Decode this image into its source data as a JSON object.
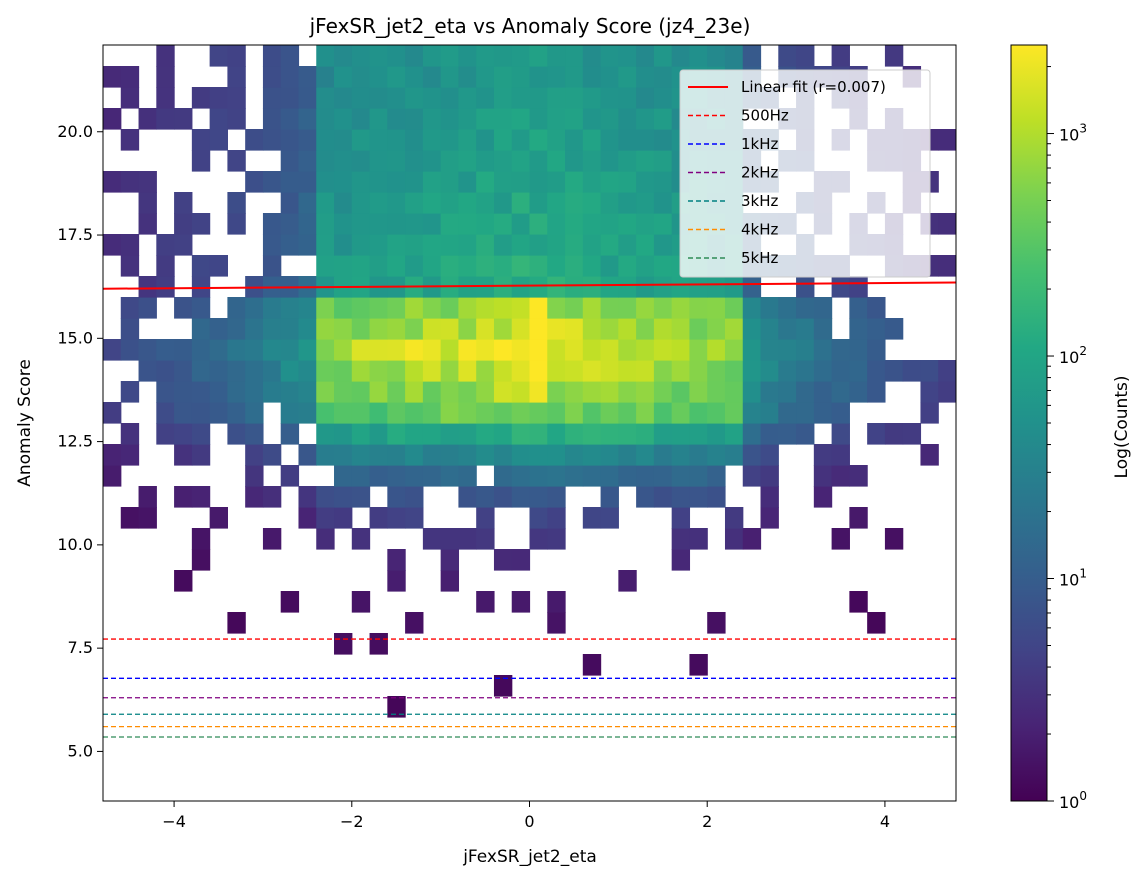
{
  "chart_data": {
    "type": "heatmap",
    "title": "jFexSR_jet2_eta vs Anomaly Score (jz4_23e)",
    "xlabel": "jFexSR_jet2_eta",
    "ylabel": "Anomaly Score",
    "xlim": [
      -4.8,
      4.8
    ],
    "ylim": [
      3.8,
      22.1
    ],
    "x_ticks": [
      -4,
      -2,
      0,
      2,
      4
    ],
    "x_tick_labels": [
      "−4",
      "−2",
      "0",
      "2",
      "4"
    ],
    "y_ticks": [
      5.0,
      7.5,
      10.0,
      12.5,
      15.0,
      17.5,
      20.0
    ],
    "y_tick_labels": [
      "5.0",
      "7.5",
      "10.0",
      "12.5",
      "15.0",
      "17.5",
      "20.0"
    ],
    "colorbar": {
      "label": "Log(Counts)",
      "scale": "log",
      "colormap": "viridis",
      "range": [
        1,
        2500
      ],
      "major_ticks": [
        1,
        10,
        100,
        1000
      ],
      "major_tick_labels": [
        {
          "base": "10",
          "exp": "0"
        },
        {
          "base": "10",
          "exp": "1"
        },
        {
          "base": "10",
          "exp": "2"
        },
        {
          "base": "10",
          "exp": "3"
        }
      ]
    },
    "hist_bins": {
      "x_edges_range": [
        -4.8,
        4.8
      ],
      "x_bins": 48,
      "y_edges_range": [
        3.8,
        22.1
      ],
      "y_bins": 36
    },
    "series": [
      {
        "name": "Linear fit (r=0.007)",
        "kind": "line",
        "style": "solid",
        "color": "#ff0000",
        "x": [
          -4.8,
          4.8
        ],
        "y": [
          16.2,
          16.35
        ]
      },
      {
        "name": "500Hz",
        "kind": "hline",
        "style": "dashed",
        "color": "#ff0000",
        "y": 7.72
      },
      {
        "name": "1kHz",
        "kind": "hline",
        "style": "dashed",
        "color": "#0000ff",
        "y": 6.77
      },
      {
        "name": "2kHz",
        "kind": "hline",
        "style": "dashed",
        "color": "#800080",
        "y": 6.3
      },
      {
        "name": "3kHz",
        "kind": "hline",
        "style": "dashed",
        "color": "#008080",
        "y": 5.9
      },
      {
        "name": "4kHz",
        "kind": "hline",
        "style": "dashed",
        "color": "#ff8c00",
        "y": 5.6
      },
      {
        "name": "5kHz",
        "kind": "hline",
        "style": "dashed",
        "color": "#2e8b57",
        "y": 5.35
      }
    ],
    "legend_position": "top-right",
    "grid": false
  }
}
